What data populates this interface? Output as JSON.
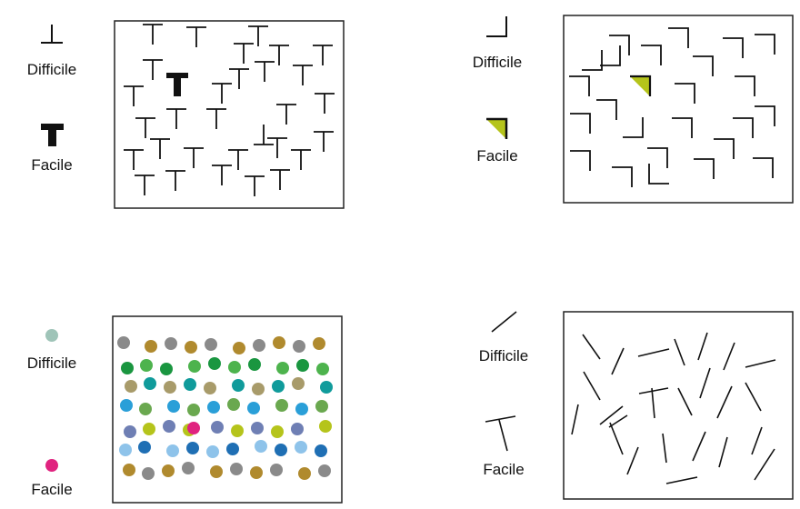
{
  "panels": [
    {
      "id": "t-search",
      "hard_label": "Difficile",
      "easy_label": "Facile",
      "hard_cue": "inverted-t-icon",
      "easy_cue": "bold-t-icon"
    },
    {
      "id": "corner-search",
      "hard_label": "Difficile",
      "easy_label": "Facile",
      "hard_cue": "corner-icon",
      "easy_cue": "filled-corner-icon"
    },
    {
      "id": "color-search",
      "hard_label": "Difficile",
      "easy_label": "Facile",
      "hard_cue": "teal-dot-icon",
      "easy_cue": "magenta-dot-icon"
    },
    {
      "id": "line-search",
      "hard_label": "Difficile",
      "easy_label": "Facile",
      "hard_cue": "oblique-line-icon",
      "easy_cue": "t-junction-icon"
    }
  ],
  "colors": {
    "ink": "#111111",
    "frame": "#222222",
    "accent_green": "#b5c41b",
    "accent_magenta": "#e0237f",
    "cue_dot": "#9fc4b8",
    "dot_palette": [
      "#8a8a8a",
      "#8ec3ea",
      "#b5c41b",
      "#2a9fd8",
      "#109b9b",
      "#1a9640",
      "#b08a2e",
      "#1f6fb4",
      "#6f7fb4",
      "#6aa84f",
      "#a89b6a",
      "#4db34d"
    ]
  }
}
